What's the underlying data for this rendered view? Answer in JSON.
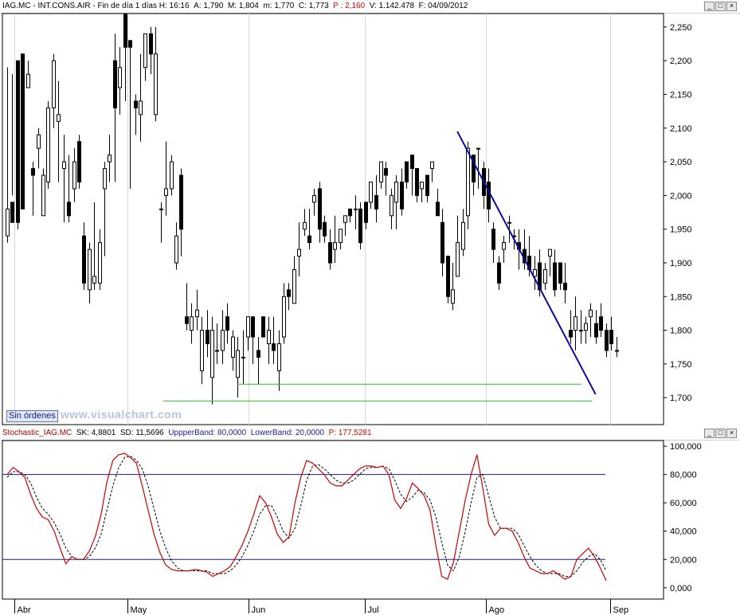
{
  "top_header": {
    "symbol": "IAG.MC",
    "name": "INT.CONS.AIR",
    "period": "Fin de día 1 días",
    "h_label": "H: 16:16",
    "a_label": "A: 1,790",
    "m_label": "M: 1,804",
    "mm_label": "m: 1,770",
    "c_label": "C: 1,773",
    "p_label": "P : 2,160",
    "v_label": "V: 1.142.478",
    "f_label": "F: 04/09/2012"
  },
  "bottom_header": {
    "name": "Stochastic_IAG.MC",
    "sk": "SK: 4,8801",
    "sd": "SD: 11,5696",
    "upper": "UppperBand: 80,0000",
    "lower": "LowerBand: 20,0000",
    "p": "P: 177,5281"
  },
  "buttons": {
    "min": "_",
    "max": "□",
    "close": "×"
  },
  "sin_ordenes": "Sin órdenes",
  "watermark": "www.visualchart.com",
  "colors": {
    "candle": "#000000",
    "trendline": "#0a0aa0",
    "support": "#33bb33",
    "sk": "#cc0000",
    "sd": "#000000",
    "bands": "#1a1aa0"
  },
  "chart_data": [
    {
      "type": "candlestick",
      "ylim": [
        1.66,
        2.27
      ],
      "yticks": [
        "2,250",
        "2,200",
        "2,150",
        "2,100",
        "2,050",
        "2,000",
        "1,950",
        "1,900",
        "1,850",
        "1,800",
        "1,750",
        "1,700"
      ],
      "ytick_values": [
        2.25,
        2.2,
        2.15,
        2.1,
        2.05,
        2.0,
        1.95,
        1.9,
        1.85,
        1.8,
        1.75,
        1.7
      ],
      "xticks": [
        "Abr",
        "May",
        "Jun",
        "Jul",
        "Ago",
        "Sep"
      ],
      "xtick_index": [
        2,
        34,
        68,
        101,
        135,
        170
      ],
      "n_bars": 185,
      "candles": [
        [
          1.94,
          1.98,
          2.19,
          1.93
        ],
        [
          1.99,
          1.96,
          2.18,
          2.0
        ],
        [
          2.2,
          1.96,
          2.2,
          1.95
        ],
        [
          2.21,
          1.98,
          2.21,
          1.99
        ],
        [
          2.16,
          2.18,
          2.2,
          2.16
        ],
        [
          2.04,
          2.03,
          2.05,
          1.97
        ],
        [
          2.07,
          2.09,
          2.1,
          2.04
        ],
        [
          1.97,
          2.03,
          2.04,
          1.97
        ],
        [
          2.02,
          2.13,
          2.14,
          2.01
        ],
        [
          2.13,
          2.2,
          2.21,
          2.1
        ],
        [
          2.11,
          2.12,
          2.17,
          2.02
        ],
        [
          2.04,
          2.05,
          2.09,
          1.96
        ],
        [
          1.99,
          1.97,
          2.06,
          1.96
        ],
        [
          2.01,
          2.05,
          2.07,
          1.99
        ],
        [
          2.08,
          2.02,
          2.09,
          2.01
        ],
        [
          1.94,
          1.87,
          1.96,
          1.86
        ],
        [
          1.86,
          1.92,
          1.93,
          1.84
        ],
        [
          1.87,
          1.88,
          1.99,
          1.86
        ],
        [
          1.87,
          1.93,
          1.95,
          1.86
        ],
        [
          2.01,
          2.04,
          2.05,
          1.91
        ],
        [
          2.05,
          2.06,
          2.09,
          2.02
        ],
        [
          2.2,
          2.13,
          2.24,
          2.02
        ],
        [
          2.16,
          2.19,
          2.22,
          2.12
        ],
        [
          2.27,
          2.22,
          2.27,
          2.14
        ],
        [
          2.23,
          2.22,
          2.23,
          2.01
        ],
        [
          2.14,
          2.13,
          2.15,
          2.09
        ],
        [
          2.12,
          2.14,
          2.21,
          2.08
        ],
        [
          2.19,
          2.24,
          2.24,
          2.17
        ],
        [
          2.24,
          2.21,
          2.25,
          2.18
        ],
        [
          2.12,
          2.21,
          2.25,
          2.11
        ],
        [
          1.98,
          1.98,
          1.99,
          1.93
        ],
        [
          2.0,
          2.01,
          2.08,
          1.97
        ],
        [
          2.01,
          2.05,
          2.06,
          2.0
        ],
        [
          1.9,
          1.94,
          1.96,
          1.89
        ],
        [
          2.03,
          1.95,
          2.04,
          1.91
        ],
        [
          1.82,
          1.81,
          1.87,
          1.8
        ],
        [
          1.8,
          1.82,
          1.84,
          1.78
        ],
        [
          1.82,
          1.83,
          1.86,
          1.8
        ],
        [
          1.74,
          1.8,
          1.82,
          1.72
        ],
        [
          1.8,
          1.78,
          1.83,
          1.76
        ],
        [
          1.73,
          1.8,
          1.82,
          1.69
        ],
        [
          1.77,
          1.77,
          1.81,
          1.75
        ],
        [
          1.77,
          1.8,
          1.83,
          1.75
        ],
        [
          1.82,
          1.8,
          1.84,
          1.78
        ],
        [
          1.76,
          1.79,
          1.8,
          1.74
        ],
        [
          1.73,
          1.77,
          1.79,
          1.7
        ],
        [
          1.76,
          1.76,
          1.8,
          1.72
        ],
        [
          1.79,
          1.82,
          1.82,
          1.77
        ],
        [
          1.82,
          1.79,
          1.82,
          1.75
        ],
        [
          1.77,
          1.76,
          1.79,
          1.72
        ],
        [
          1.82,
          1.79,
          1.82,
          1.79
        ],
        [
          1.78,
          1.8,
          1.82,
          1.75
        ],
        [
          1.78,
          1.77,
          1.82,
          1.75
        ],
        [
          1.74,
          1.78,
          1.8,
          1.71
        ],
        [
          1.79,
          1.85,
          1.87,
          1.78
        ],
        [
          1.86,
          1.85,
          1.87,
          1.83
        ],
        [
          1.84,
          1.89,
          1.91,
          1.84
        ],
        [
          1.91,
          1.92,
          1.96,
          1.88
        ],
        [
          1.95,
          1.96,
          1.98,
          1.94
        ],
        [
          1.94,
          1.93,
          1.98,
          1.92
        ],
        [
          1.99,
          2.0,
          2.01,
          1.97
        ],
        [
          2.01,
          1.95,
          2.02,
          1.93
        ],
        [
          1.96,
          1.94,
          1.97,
          1.93
        ],
        [
          1.93,
          1.9,
          1.95,
          1.89
        ],
        [
          1.92,
          1.93,
          1.97,
          1.9
        ],
        [
          1.93,
          1.95,
          1.95,
          1.92
        ],
        [
          1.96,
          1.97,
          1.97,
          1.94
        ],
        [
          1.98,
          1.97,
          1.98,
          1.96
        ],
        [
          1.98,
          1.98,
          2.0,
          1.95
        ],
        [
          1.98,
          1.93,
          1.99,
          1.92
        ],
        [
          1.99,
          1.96,
          1.99,
          1.95
        ],
        [
          1.99,
          2.02,
          2.02,
          1.98
        ],
        [
          2.0,
          1.98,
          2.03,
          1.96
        ],
        [
          2.02,
          2.05,
          2.05,
          2.01
        ],
        [
          2.04,
          2.03,
          2.05,
          2.0
        ],
        [
          1.97,
          2.0,
          2.01,
          1.95
        ],
        [
          1.99,
          2.02,
          2.03,
          1.95
        ],
        [
          2.02,
          1.98,
          2.04,
          1.97
        ],
        [
          2.05,
          2.02,
          2.05,
          2.01
        ],
        [
          2.06,
          2.04,
          2.06,
          2.0
        ],
        [
          2.04,
          2.0,
          2.04,
          1.99
        ],
        [
          2.01,
          2.02,
          2.02,
          1.99
        ],
        [
          2.03,
          2.0,
          2.03,
          1.99
        ],
        [
          2.04,
          2.05,
          2.05,
          2.02
        ],
        [
          1.99,
          1.97,
          2.01,
          1.97
        ],
        [
          1.96,
          1.9,
          1.98,
          1.88
        ],
        [
          1.91,
          1.85,
          1.91,
          1.84
        ],
        [
          1.84,
          1.86,
          1.9,
          1.83
        ],
        [
          1.88,
          1.93,
          1.97,
          1.88
        ],
        [
          1.92,
          1.96,
          1.98,
          1.91
        ],
        [
          1.97,
          2.07,
          2.08,
          1.95
        ],
        [
          2.06,
          2.02,
          2.06,
          2.0
        ],
        [
          2.07,
          2.07,
          2.07,
          2.01
        ],
        [
          2.04,
          2.0,
          2.05,
          1.98
        ],
        [
          2.02,
          1.98,
          2.04,
          1.96
        ],
        [
          1.95,
          1.92,
          1.96,
          1.9
        ],
        [
          1.9,
          1.87,
          1.91,
          1.86
        ],
        [
          1.92,
          1.93,
          1.94,
          1.9
        ],
        [
          1.96,
          1.96,
          1.97,
          1.93
        ],
        [
          1.94,
          1.94,
          1.95,
          1.92
        ],
        [
          1.93,
          1.92,
          1.95,
          1.89
        ],
        [
          1.92,
          1.9,
          1.95,
          1.89
        ],
        [
          1.91,
          1.89,
          1.94,
          1.88
        ],
        [
          1.88,
          1.89,
          1.91,
          1.86
        ],
        [
          1.9,
          1.86,
          1.92,
          1.85
        ],
        [
          1.87,
          1.89,
          1.9,
          1.86
        ],
        [
          1.91,
          1.92,
          1.92,
          1.88
        ],
        [
          1.9,
          1.86,
          1.92,
          1.85
        ],
        [
          1.9,
          1.87,
          1.9,
          1.86
        ],
        [
          1.87,
          1.86,
          1.9,
          1.84
        ],
        [
          1.8,
          1.79,
          1.83,
          1.78
        ],
        [
          1.8,
          1.82,
          1.85,
          1.77
        ],
        [
          1.8,
          1.8,
          1.83,
          1.78
        ],
        [
          1.8,
          1.81,
          1.82,
          1.78
        ],
        [
          1.82,
          1.83,
          1.84,
          1.79
        ],
        [
          1.81,
          1.79,
          1.83,
          1.78
        ],
        [
          1.82,
          1.8,
          1.84,
          1.79
        ],
        [
          1.8,
          1.77,
          1.81,
          1.76
        ],
        [
          1.8,
          1.78,
          1.82,
          1.77
        ],
        [
          1.77,
          1.77,
          1.79,
          1.76
        ]
      ],
      "trendline": [
        [
          127,
          2.095
        ],
        [
          166,
          1.705
        ]
      ],
      "support_lines": [
        [
          [
            65,
            1.72
          ],
          [
            162,
            1.72
          ]
        ],
        [
          [
            44,
            1.695
          ],
          [
            165,
            1.695
          ]
        ]
      ]
    },
    {
      "type": "line",
      "title": "Stochastic_IAG.MC",
      "ylim": [
        -8,
        104
      ],
      "yticks": [
        "100,000",
        "80,000",
        "60,000",
        "40,000",
        "20,000",
        "0,000"
      ],
      "ytick_values": [
        100,
        80,
        60,
        40,
        20,
        0
      ],
      "bands": [
        80,
        20
      ],
      "series": [
        {
          "name": "SK",
          "values": [
            80,
            85,
            82,
            78,
            66,
            56,
            50,
            48,
            40,
            28,
            17,
            22,
            20,
            20,
            26,
            36,
            52,
            75,
            90,
            94,
            95,
            92,
            88,
            72,
            55,
            38,
            25,
            16,
            13,
            12,
            12,
            12,
            13,
            12,
            11,
            8,
            10,
            12,
            15,
            22,
            30,
            40,
            52,
            65,
            60,
            50,
            38,
            32,
            36,
            60,
            78,
            90,
            88,
            84,
            80,
            74,
            72,
            72,
            76,
            80,
            84,
            86,
            86,
            85,
            86,
            80,
            62,
            56,
            63,
            74,
            70,
            65,
            55,
            30,
            8,
            6,
            18,
            40,
            62,
            80,
            94,
            70,
            45,
            37,
            42,
            42,
            40,
            32,
            22,
            14,
            12,
            10,
            10,
            12,
            9,
            6,
            8,
            20,
            24,
            28,
            22,
            14,
            5
          ]
        },
        {
          "name": "SD",
          "values": [
            78,
            82,
            82,
            80,
            74,
            64,
            56,
            52,
            46,
            38,
            28,
            22,
            20,
            20,
            22,
            28,
            38,
            55,
            72,
            85,
            92,
            93,
            90,
            84,
            72,
            56,
            40,
            28,
            19,
            14,
            12,
            12,
            12,
            12,
            12,
            10,
            10,
            10,
            12,
            16,
            22,
            30,
            40,
            52,
            58,
            58,
            50,
            40,
            35,
            42,
            58,
            76,
            86,
            87,
            84,
            80,
            76,
            74,
            74,
            76,
            80,
            84,
            85,
            85,
            86,
            84,
            76,
            66,
            61,
            64,
            69,
            67,
            62,
            50,
            32,
            16,
            12,
            22,
            40,
            60,
            78,
            80,
            65,
            50,
            42,
            42,
            42,
            38,
            30,
            22,
            16,
            12,
            10,
            10,
            10,
            8,
            8,
            12,
            18,
            22,
            24,
            20,
            12
          ]
        }
      ]
    }
  ]
}
